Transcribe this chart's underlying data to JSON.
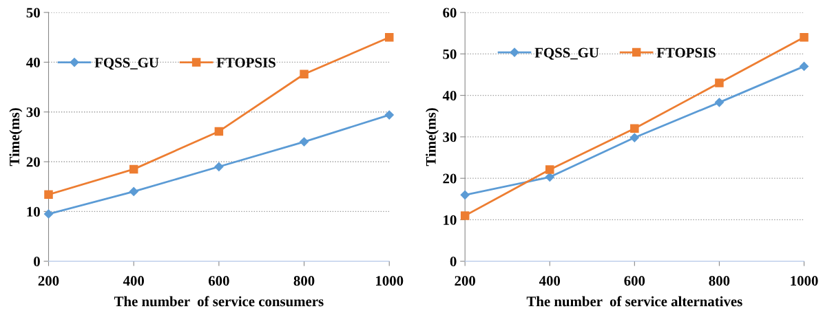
{
  "chart_data": [
    {
      "type": "line",
      "xlabel": "The number  of service consumers",
      "ylabel": "Time(ms)",
      "x": [
        200,
        400,
        600,
        800,
        1000
      ],
      "xlim": [
        200,
        1000
      ],
      "xticks": [
        200,
        400,
        600,
        800,
        1000
      ],
      "ylim": [
        0,
        50
      ],
      "yticks": [
        0,
        10,
        20,
        30,
        40,
        50
      ],
      "grid": "y",
      "legend": "upper left",
      "series": [
        {
          "name": "FQSS_GU",
          "color": "#5b9bd5",
          "marker": "diamond",
          "values": [
            9.5,
            14,
            19,
            24,
            29.4
          ]
        },
        {
          "name": "FTOPSIS",
          "color": "#ed7d31",
          "marker": "square",
          "values": [
            13.4,
            18.5,
            26.1,
            37.6,
            45
          ]
        }
      ]
    },
    {
      "type": "line",
      "xlabel": "The number  of service alternatives",
      "ylabel": "Time(ms)",
      "x": [
        200,
        400,
        600,
        800,
        1000
      ],
      "xlim": [
        200,
        1000
      ],
      "xticks": [
        200,
        400,
        600,
        800,
        1000
      ],
      "ylim": [
        0,
        60
      ],
      "yticks": [
        0,
        10,
        20,
        30,
        40,
        50,
        60
      ],
      "grid": "y",
      "legend": "upper center",
      "series": [
        {
          "name": "FQSS_GU",
          "color": "#5b9bd5",
          "marker": "diamond",
          "values": [
            16,
            20.3,
            29.8,
            38.3,
            47
          ]
        },
        {
          "name": "FTOPSIS",
          "color": "#ed7d31",
          "marker": "square",
          "values": [
            11,
            22.1,
            32,
            43,
            54
          ]
        }
      ]
    }
  ]
}
